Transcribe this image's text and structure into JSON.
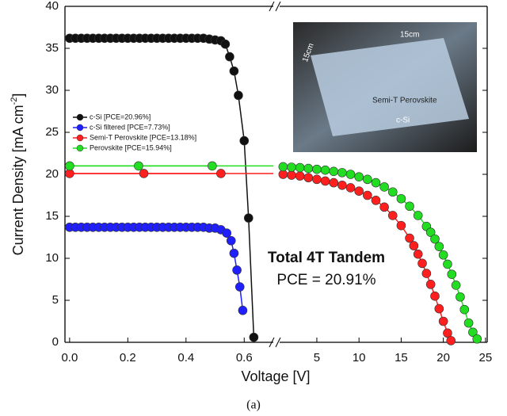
{
  "chart_data": [
    {
      "type": "scatter-line",
      "y_label": "Current Density [mA cm",
      "y_label_sup": "-2",
      "y_label_end": "]",
      "x_label": "Voltage [V]",
      "xlim": [
        -0.016,
        0.7
      ],
      "xticks": [
        {
          "value": 0,
          "label": "0.0"
        },
        0.2,
        0.4,
        0.6
      ],
      "ylim": [
        0,
        40
      ],
      "yticks": [
        0,
        5,
        10,
        15,
        20,
        25,
        30,
        35,
        40
      ],
      "legend": "upper left",
      "series": [
        {
          "name": "c-Si [PCE=20.96%]",
          "color": "#111111",
          "x": [
            0,
            0.02,
            0.04,
            0.06,
            0.08,
            0.1,
            0.12,
            0.14,
            0.16,
            0.18,
            0.2,
            0.22,
            0.24,
            0.26,
            0.28,
            0.3,
            0.32,
            0.34,
            0.36,
            0.38,
            0.4,
            0.42,
            0.44,
            0.46,
            0.48,
            0.5,
            0.52,
            0.535,
            0.55,
            0.565,
            0.58,
            0.6,
            0.615,
            0.633
          ],
          "values": [
            36.2,
            36.2,
            36.2,
            36.2,
            36.2,
            36.2,
            36.2,
            36.2,
            36.2,
            36.2,
            36.2,
            36.2,
            36.2,
            36.2,
            36.2,
            36.2,
            36.2,
            36.2,
            36.2,
            36.2,
            36.2,
            36.2,
            36.2,
            36.2,
            36.1,
            36.0,
            35.9,
            35.5,
            34.0,
            32.3,
            29.4,
            24.0,
            14.8,
            0.6
          ]
        },
        {
          "name": "c-Si filtered [PCE=7.73%]",
          "color": "#1f1fff",
          "x": [
            0,
            0.02,
            0.04,
            0.06,
            0.08,
            0.1,
            0.12,
            0.14,
            0.16,
            0.18,
            0.2,
            0.22,
            0.24,
            0.26,
            0.28,
            0.3,
            0.32,
            0.34,
            0.36,
            0.38,
            0.4,
            0.42,
            0.44,
            0.46,
            0.48,
            0.5,
            0.52,
            0.54,
            0.555,
            0.565,
            0.575,
            0.585,
            0.595
          ],
          "values": [
            13.7,
            13.7,
            13.7,
            13.7,
            13.7,
            13.7,
            13.7,
            13.7,
            13.7,
            13.7,
            13.7,
            13.7,
            13.7,
            13.7,
            13.7,
            13.7,
            13.7,
            13.7,
            13.7,
            13.7,
            13.7,
            13.7,
            13.7,
            13.7,
            13.6,
            13.6,
            13.4,
            13.0,
            12.1,
            10.6,
            8.6,
            6.6,
            3.8
          ]
        },
        {
          "name": "Semi-T Perovskite [PCE=13.18%]",
          "color": "#ff1f1f",
          "edge_line": true,
          "x": [
            0,
            0.255,
            0.52
          ],
          "values": [
            20.1,
            20.1,
            20.1
          ]
        },
        {
          "name": "Perovskite [PCE=15.94%]",
          "color": "#22dd22",
          "edge_line": true,
          "x": [
            0,
            0.237,
            0.49
          ],
          "values": [
            21.0,
            21.0,
            21.0
          ]
        }
      ]
    },
    {
      "type": "scatter-line",
      "xlim": [
        0.59,
        25.2
      ],
      "xticks": [
        5,
        10,
        15,
        20,
        25
      ],
      "annotations": [
        "Total 4T Tandem",
        "PCE = 20.91%"
      ],
      "series": [
        {
          "color": "#ff1f1f",
          "x": [
            1,
            2,
            3,
            4,
            5,
            6,
            7,
            8,
            9,
            10,
            11,
            12,
            13,
            14,
            15,
            16,
            16.5,
            17,
            17.5,
            18,
            18.5,
            19,
            19.5,
            20,
            20.5,
            20.9
          ],
          "values": [
            20.0,
            19.9,
            19.8,
            19.6,
            19.4,
            19.2,
            19.0,
            18.7,
            18.4,
            18.0,
            17.5,
            16.9,
            16.1,
            15.1,
            13.9,
            12.4,
            11.5,
            10.5,
            9.4,
            8.2,
            6.9,
            5.5,
            4.0,
            2.5,
            1.1,
            0.2
          ]
        },
        {
          "color": "#22dd22",
          "x": [
            1,
            2,
            3,
            4,
            5,
            6,
            7,
            8,
            9,
            10,
            11,
            12,
            13,
            14,
            15,
            16,
            17,
            18,
            18.5,
            19,
            19.5,
            20,
            20.5,
            21,
            21.5,
            22,
            22.5,
            23,
            23.5,
            24
          ],
          "values": [
            20.9,
            20.85,
            20.8,
            20.7,
            20.6,
            20.5,
            20.35,
            20.2,
            20.0,
            19.7,
            19.4,
            19.0,
            18.5,
            17.9,
            17.1,
            16.2,
            15.1,
            13.8,
            13.1,
            12.3,
            11.4,
            10.4,
            9.3,
            8.1,
            6.8,
            5.4,
            3.9,
            2.3,
            1.2,
            0.4
          ]
        }
      ]
    }
  ],
  "inset": {
    "labels": [
      "15cm",
      "15cm",
      "Semi-T Perovskite",
      "c-Si"
    ]
  },
  "caption": "(a)"
}
